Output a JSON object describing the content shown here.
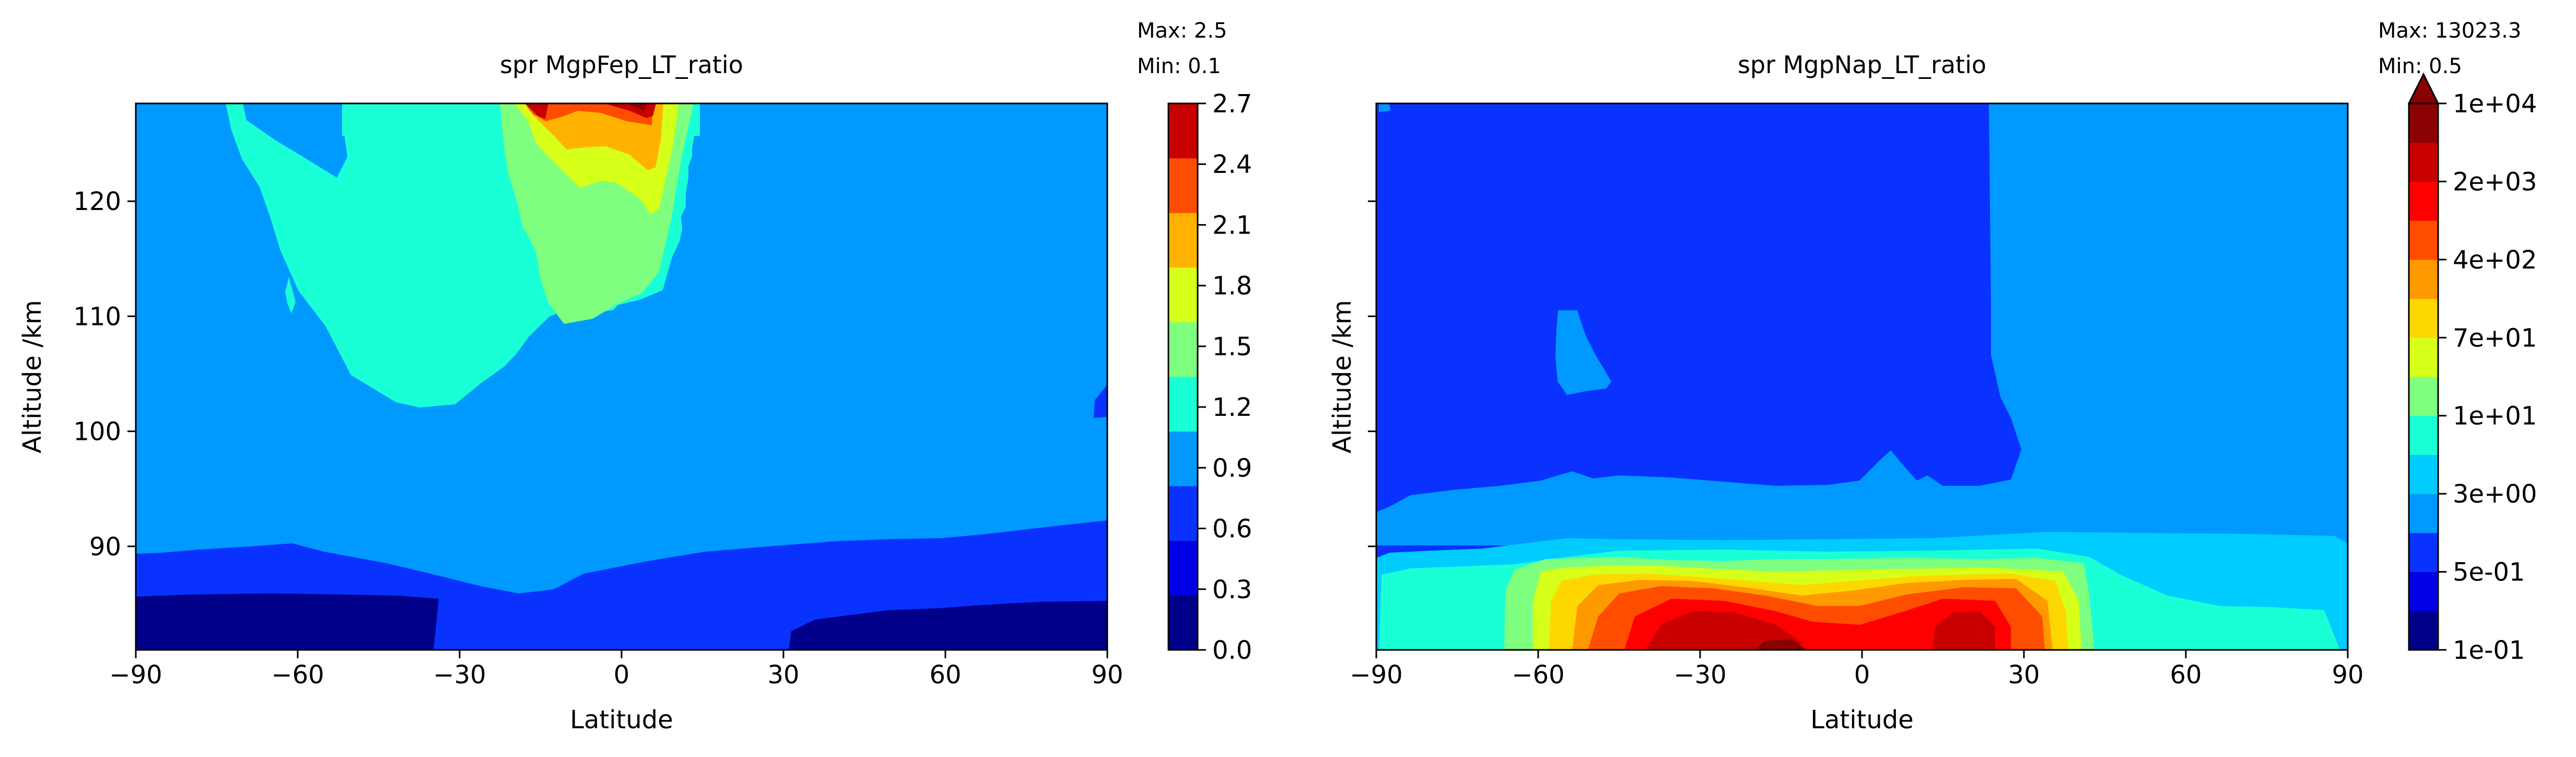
{
  "chart_data": [
    {
      "type": "contour",
      "title": "spr MgpFep_LT_ratio",
      "annotation": {
        "max_label": "Max: 2.5",
        "min_label": "Min: 0.1"
      },
      "xlabel": "Latitude",
      "ylabel": "Altitude /km",
      "xlim": [
        -90,
        90
      ],
      "ylim": [
        81,
        128.5
      ],
      "xticks": [
        -90,
        -60,
        -30,
        0,
        30,
        60,
        90
      ],
      "xtick_labels": [
        "−90",
        "−60",
        "−30",
        "0",
        "30",
        "60",
        "90"
      ],
      "yticks": [
        90,
        100,
        110,
        120
      ],
      "ytick_labels": [
        "90",
        "100",
        "110",
        "120"
      ],
      "colorbar": {
        "levels": [
          "0.0",
          "0.3",
          "0.6",
          "0.9",
          "1.2",
          "1.5",
          "1.8",
          "2.1",
          "2.4",
          "2.7"
        ],
        "colors": [
          "#00008b",
          "#0000e6",
          "#0a32ff",
          "#0099ff",
          "#19ffd6",
          "#7fff7f",
          "#d6ff19",
          "#ffb300",
          "#ff4d00",
          "#c80000"
        ]
      },
      "max": 2.5,
      "min": 0.1
    },
    {
      "type": "contour",
      "title": "spr MgpNap_LT_ratio",
      "annotation": {
        "max_label": "Max: 13023.3",
        "min_label": "Min: 0.5"
      },
      "xlabel": "Latitude",
      "ylabel": "Altitude /km",
      "xlim": [
        -90,
        90
      ],
      "ylim": [
        81,
        128.5
      ],
      "xticks": [
        -90,
        -60,
        -30,
        0,
        30,
        60,
        90
      ],
      "xtick_labels": [
        "−90",
        "−60",
        "−30",
        "0",
        "30",
        "60",
        "90"
      ],
      "yticks": [
        90,
        100,
        110,
        120
      ],
      "ytick_labels": [
        "",
        "",
        "",
        ""
      ],
      "colorbar": {
        "extend": "max",
        "tick_labels": [
          "1e-01",
          "5e-01",
          "3e+00",
          "1e+01",
          "7e+01",
          "4e+02",
          "2e+03",
          "1e+04"
        ],
        "colors": [
          "#00008b",
          "#0000e6",
          "#0a32ff",
          "#0099ff",
          "#00ccff",
          "#19ffd6",
          "#7fff7f",
          "#d6ff19",
          "#ffd700",
          "#ff9900",
          "#ff4d00",
          "#ff0000",
          "#c80000",
          "#8b0000"
        ]
      },
      "max": 13023.3,
      "min": 0.5
    }
  ]
}
